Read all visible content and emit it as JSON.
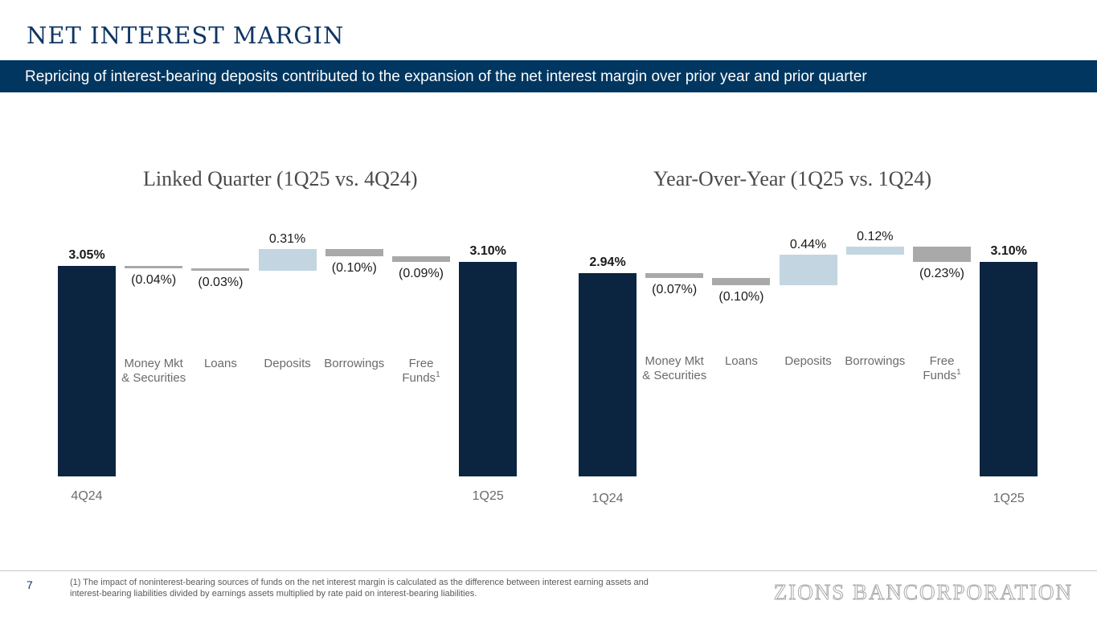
{
  "header": {
    "title": "NET INTEREST MARGIN",
    "banner": "Repricing of interest-bearing deposits contributed to the expansion of the net interest margin over prior year and prior quarter"
  },
  "colors": {
    "total": "#0b2440",
    "increase": "#c3d5e1",
    "decrease": "#a9a9a9",
    "banner": "#00365f",
    "title": "#0f3563"
  },
  "chart_data": [
    {
      "type": "bar",
      "subtype": "waterfall",
      "title": "Linked Quarter (1Q25 vs. 4Q24)",
      "start": {
        "label": "4Q24",
        "value": 3.05,
        "value_label": "3.05%"
      },
      "end": {
        "label": "1Q25",
        "value": 3.1,
        "value_label": "3.10%"
      },
      "steps": [
        {
          "category": "Money Mkt\n& Securities",
          "value": -0.04,
          "value_label": "(0.04%)"
        },
        {
          "category": "Loans",
          "value": -0.03,
          "value_label": "(0.03%)"
        },
        {
          "category": "Deposits",
          "value": 0.31,
          "value_label": "0.31%"
        },
        {
          "category": "Borrowings",
          "value": -0.1,
          "value_label": "(0.10%)"
        },
        {
          "category": "Free\nFunds",
          "value": -0.09,
          "value_label": "(0.09%)",
          "footnote_ref": "1"
        }
      ]
    },
    {
      "type": "bar",
      "subtype": "waterfall",
      "title": "Year-Over-Year (1Q25 vs. 1Q24)",
      "start": {
        "label": "1Q24",
        "value": 2.94,
        "value_label": "2.94%"
      },
      "end": {
        "label": "1Q25",
        "value": 3.1,
        "value_label": "3.10%"
      },
      "steps": [
        {
          "category": "Money Mkt\n& Securities",
          "value": -0.07,
          "value_label": "(0.07%)"
        },
        {
          "category": "Loans",
          "value": -0.1,
          "value_label": "(0.10%)"
        },
        {
          "category": "Deposits",
          "value": 0.44,
          "value_label": "0.44%"
        },
        {
          "category": "Borrowings",
          "value": 0.12,
          "value_label": "0.12%"
        },
        {
          "category": "Free\nFunds",
          "value": -0.23,
          "value_label": "(0.23%)",
          "footnote_ref": "1"
        }
      ]
    }
  ],
  "footer": {
    "page_number": "7",
    "footnote": "(1) The impact of noninterest-bearing sources of funds on the net interest margin is calculated as the difference between interest earning assets and interest-bearing liabilities divided by earnings assets multiplied by rate paid on interest-bearing liabilities.",
    "logo_text": "ZIONS BANCORPORATION"
  }
}
